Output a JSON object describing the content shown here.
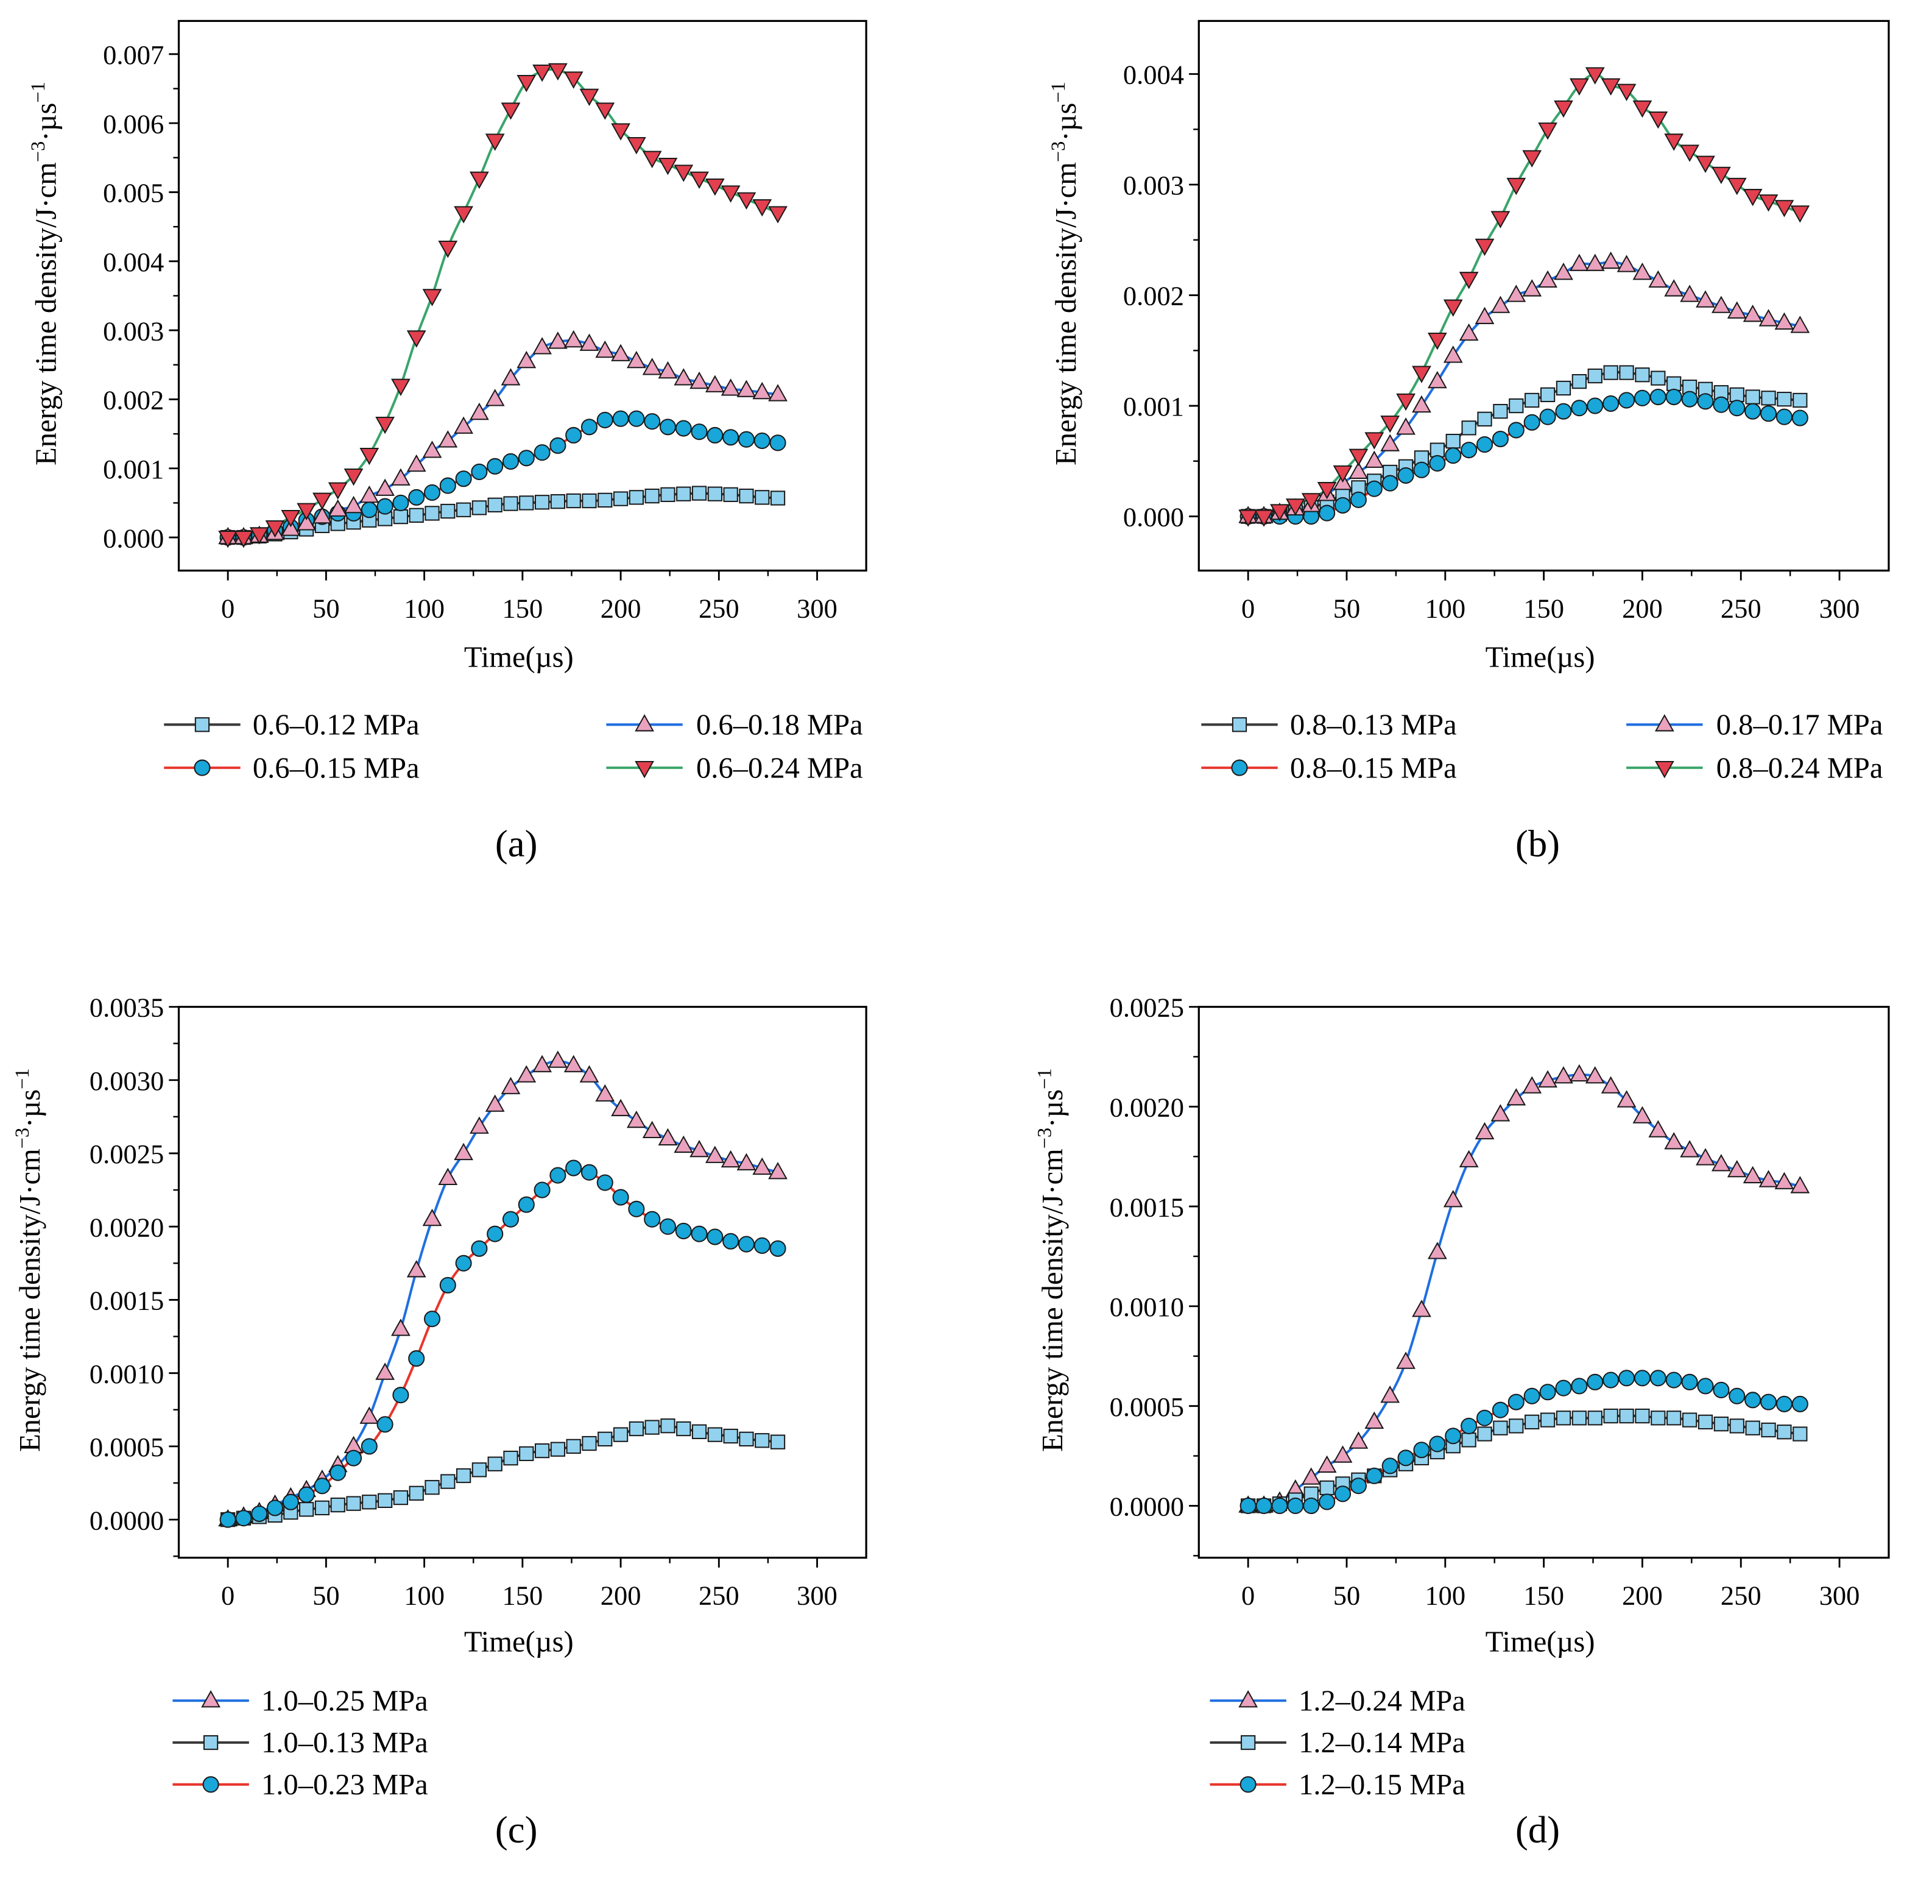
{
  "colors": {
    "green_line": "#3aa56b",
    "blue_line": "#1f6fe0",
    "red_line": "#e8362c",
    "dark_line": "#3a3a3a",
    "down_triangle": "#e2404f",
    "up_triangle": "#eaa2be",
    "circle": "#19a6d9",
    "square": "#92d2ef"
  },
  "chart_data": [
    {
      "type": "line",
      "panel_label": "(a)",
      "xlabel": "Time(µs)",
      "ylabel": {
        "base": "Energy time density/J·cm",
        "sup1": "−3",
        "mid": "·µs",
        "sup2": "−1"
      },
      "xlim": [
        -25,
        325
      ],
      "ylim": [
        -0.00048,
        0.00748
      ],
      "xticks": [
        0,
        50,
        100,
        150,
        200,
        250,
        300
      ],
      "xtick_labels": [
        "0",
        "50",
        "100",
        "150",
        "200",
        "250",
        "300"
      ],
      "yticks": [
        0,
        0.001,
        0.002,
        0.003,
        0.004,
        0.005,
        0.006,
        0.007
      ],
      "ytick_labels": [
        "0.000",
        "0.001",
        "0.002",
        "0.003",
        "0.004",
        "0.005",
        "0.006",
        "0.007"
      ],
      "legend_layout": "two-columns-below",
      "x": [
        0,
        8,
        16,
        24,
        32,
        40,
        48,
        56,
        64,
        72,
        80,
        88,
        96,
        104,
        112,
        120,
        128,
        136,
        144,
        152,
        160,
        168,
        176,
        184,
        192,
        200,
        208,
        216,
        224,
        232,
        240,
        248,
        256,
        264,
        272,
        280
      ],
      "series": [
        {
          "name": "0.6–0.12 MPa",
          "marker": "square",
          "line": "dark_line",
          "values": [
            0,
            0,
            2e-05,
            5e-05,
            8e-05,
            0.00012,
            0.00017,
            0.0002,
            0.00022,
            0.00025,
            0.00027,
            0.0003,
            0.00032,
            0.00035,
            0.00038,
            0.0004,
            0.00043,
            0.00047,
            0.00049,
            0.0005,
            0.00051,
            0.00052,
            0.00053,
            0.00053,
            0.00054,
            0.00056,
            0.00058,
            0.0006,
            0.00062,
            0.00063,
            0.00064,
            0.00063,
            0.00062,
            0.0006,
            0.00058,
            0.00057
          ]
        },
        {
          "name": "0.6–0.15 MPa",
          "marker": "circle",
          "line": "red_line",
          "values": [
            0,
            0,
            3e-05,
            0.0001,
            0.00015,
            0.00025,
            0.0003,
            0.00035,
            0.00035,
            0.0004,
            0.00045,
            0.0005,
            0.00058,
            0.00065,
            0.00075,
            0.00085,
            0.00095,
            0.00103,
            0.0011,
            0.00115,
            0.00123,
            0.00133,
            0.00148,
            0.0016,
            0.0017,
            0.00172,
            0.00172,
            0.00168,
            0.0016,
            0.00158,
            0.00153,
            0.00148,
            0.00145,
            0.00142,
            0.0014,
            0.00137
          ]
        },
        {
          "name": "0.6–0.18 MPa",
          "marker": "up_triangle",
          "line": "blue_line",
          "values": [
            0,
            0,
            2e-05,
            6e-05,
            0.00012,
            0.0002,
            0.0003,
            0.0004,
            0.00045,
            0.0006,
            0.0007,
            0.00085,
            0.00105,
            0.00125,
            0.0014,
            0.0016,
            0.0018,
            0.002,
            0.0023,
            0.00255,
            0.00275,
            0.00283,
            0.00285,
            0.0028,
            0.0027,
            0.00265,
            0.00255,
            0.00245,
            0.0024,
            0.0023,
            0.00225,
            0.0022,
            0.00215,
            0.00213,
            0.0021,
            0.00207
          ]
        },
        {
          "name": "0.6–0.24 MPa",
          "marker": "down_triangle",
          "line": "green_line",
          "values": [
            0,
            0,
            5e-05,
            0.00015,
            0.0003,
            0.0004,
            0.00055,
            0.0007,
            0.0009,
            0.0012,
            0.00165,
            0.0022,
            0.0029,
            0.0035,
            0.0042,
            0.0047,
            0.0052,
            0.00575,
            0.0062,
            0.0066,
            0.00675,
            0.00677,
            0.00665,
            0.0064,
            0.0062,
            0.0059,
            0.0057,
            0.0055,
            0.0054,
            0.0053,
            0.0052,
            0.0051,
            0.005,
            0.0049,
            0.0048,
            0.0047
          ]
        }
      ]
    },
    {
      "type": "line",
      "panel_label": "(b)",
      "xlabel": "Time(µs)",
      "ylabel": {
        "base": "Energy time density/J·cm",
        "sup1": "−3",
        "mid": "·µs",
        "sup2": "−1"
      },
      "xlim": [
        -25,
        325
      ],
      "ylim": [
        -0.00049,
        0.00448
      ],
      "xticks": [
        0,
        50,
        100,
        150,
        200,
        250,
        300
      ],
      "xtick_labels": [
        "0",
        "50",
        "100",
        "150",
        "200",
        "250",
        "300"
      ],
      "yticks": [
        0,
        0.001,
        0.002,
        0.003,
        0.004
      ],
      "ytick_labels": [
        "0.000",
        "0.001",
        "0.002",
        "0.003",
        "0.004"
      ],
      "legend_layout": "two-columns-below",
      "x": [
        0,
        8,
        16,
        24,
        32,
        40,
        48,
        56,
        64,
        72,
        80,
        88,
        96,
        104,
        112,
        120,
        128,
        136,
        144,
        152,
        160,
        168,
        176,
        184,
        192,
        200,
        208,
        216,
        224,
        232,
        240,
        248,
        256,
        264,
        272,
        280
      ],
      "series": [
        {
          "name": "0.8–0.13 MPa",
          "marker": "square",
          "line": "dark_line",
          "values": [
            0,
            0,
            2e-05,
            4e-05,
            8e-05,
            0.00013,
            0.0002,
            0.00026,
            0.00032,
            0.0004,
            0.00045,
            0.00053,
            0.0006,
            0.00068,
            0.0008,
            0.00088,
            0.00095,
            0.001,
            0.00105,
            0.0011,
            0.00116,
            0.00122,
            0.00127,
            0.0013,
            0.0013,
            0.00128,
            0.00125,
            0.0012,
            0.00117,
            0.00115,
            0.00112,
            0.0011,
            0.00108,
            0.00107,
            0.00106,
            0.00105
          ]
        },
        {
          "name": "0.8–0.15 MPa",
          "marker": "circle",
          "line": "red_line",
          "values": [
            0,
            0,
            0,
            0,
            0,
            3e-05,
            0.0001,
            0.00015,
            0.00025,
            0.0003,
            0.00037,
            0.00042,
            0.00048,
            0.00055,
            0.0006,
            0.00065,
            0.0007,
            0.00078,
            0.00085,
            0.0009,
            0.00095,
            0.00098,
            0.001,
            0.00102,
            0.00105,
            0.00107,
            0.00108,
            0.00108,
            0.00106,
            0.00104,
            0.00101,
            0.00098,
            0.00095,
            0.00093,
            0.0009,
            0.00089
          ]
        },
        {
          "name": "0.8–0.17 MPa",
          "marker": "up_triangle",
          "line": "blue_line",
          "values": [
            0,
            0,
            3e-05,
            7e-05,
            0.0001,
            0.0002,
            0.0003,
            0.0004,
            0.0005,
            0.00065,
            0.0008,
            0.001,
            0.00122,
            0.00145,
            0.00165,
            0.0018,
            0.0019,
            0.002,
            0.00205,
            0.00213,
            0.0022,
            0.00228,
            0.00228,
            0.0023,
            0.00227,
            0.0022,
            0.00213,
            0.00205,
            0.002,
            0.00195,
            0.0019,
            0.00185,
            0.00182,
            0.00178,
            0.00175,
            0.00172
          ]
        },
        {
          "name": "0.8–0.24 MPa",
          "marker": "down_triangle",
          "line": "green_line",
          "values": [
            0,
            0,
            5e-05,
            0.0001,
            0.00015,
            0.00025,
            0.0004,
            0.00055,
            0.0007,
            0.00085,
            0.00105,
            0.0013,
            0.0016,
            0.0019,
            0.00215,
            0.00245,
            0.0027,
            0.003,
            0.00325,
            0.0035,
            0.0037,
            0.0039,
            0.004,
            0.0039,
            0.00385,
            0.0037,
            0.0036,
            0.0034,
            0.0033,
            0.0032,
            0.0031,
            0.003,
            0.0029,
            0.00285,
            0.0028,
            0.00275
          ]
        }
      ]
    },
    {
      "type": "line",
      "panel_label": "(c)",
      "xlabel": "Time(µs)",
      "ylabel": {
        "base": "Energy time density/J·cm",
        "sup1": "−3",
        "mid": "·µs",
        "sup2": "−1"
      },
      "xlim": [
        -25,
        325
      ],
      "ylim": [
        -0.00026,
        0.0035
      ],
      "xticks": [
        0,
        50,
        100,
        150,
        200,
        250,
        300
      ],
      "xtick_labels": [
        "0",
        "50",
        "100",
        "150",
        "200",
        "250",
        "300"
      ],
      "yticks": [
        0,
        0.0005,
        0.001,
        0.0015,
        0.002,
        0.0025,
        0.003,
        0.0035
      ],
      "ytick_labels": [
        "0.0000",
        "0.0005",
        "0.0010",
        "0.0015",
        "0.0020",
        "0.0025",
        "0.0030",
        "0.0035"
      ],
      "legend_layout": "one-column-below",
      "x": [
        0,
        8,
        16,
        24,
        32,
        40,
        48,
        56,
        64,
        72,
        80,
        88,
        96,
        104,
        112,
        120,
        128,
        136,
        144,
        152,
        160,
        168,
        176,
        184,
        192,
        200,
        208,
        216,
        224,
        232,
        240,
        248,
        256,
        264,
        272,
        280
      ],
      "series": [
        {
          "name": "1.0–0.25 MPa",
          "marker": "up_triangle",
          "line": "blue_line",
          "values": [
            0,
            2e-05,
            5e-05,
            0.0001,
            0.00015,
            0.0002,
            0.00027,
            0.00037,
            0.0005,
            0.0007,
            0.001,
            0.0013,
            0.0017,
            0.00205,
            0.00233,
            0.0025,
            0.00268,
            0.00283,
            0.00295,
            0.00303,
            0.0031,
            0.00313,
            0.0031,
            0.00303,
            0.0029,
            0.0028,
            0.00272,
            0.00265,
            0.0026,
            0.00255,
            0.00252,
            0.00248,
            0.00245,
            0.00243,
            0.0024,
            0.00237
          ]
        },
        {
          "name": "1.0–0.13 MPa",
          "marker": "square",
          "line": "dark_line",
          "values": [
            0,
            1e-05,
            2e-05,
            3e-05,
            5e-05,
            7e-05,
            8e-05,
            0.0001,
            0.00011,
            0.00012,
            0.00013,
            0.00015,
            0.00018,
            0.00022,
            0.00026,
            0.0003,
            0.00034,
            0.00038,
            0.00042,
            0.00045,
            0.00047,
            0.00048,
            0.0005,
            0.00052,
            0.00055,
            0.00058,
            0.00062,
            0.00063,
            0.00064,
            0.00062,
            0.0006,
            0.00058,
            0.00057,
            0.00055,
            0.00054,
            0.00053
          ]
        },
        {
          "name": "1.0–0.23 MPa",
          "marker": "circle",
          "line": "red_line",
          "values": [
            0,
            1e-05,
            4e-05,
            8e-05,
            0.00012,
            0.00017,
            0.00023,
            0.00032,
            0.00042,
            0.0005,
            0.00065,
            0.00085,
            0.0011,
            0.00137,
            0.0016,
            0.00175,
            0.00185,
            0.00195,
            0.00205,
            0.00215,
            0.00225,
            0.00235,
            0.0024,
            0.00237,
            0.0023,
            0.0022,
            0.00212,
            0.00205,
            0.002,
            0.00197,
            0.00195,
            0.00193,
            0.0019,
            0.00188,
            0.00187,
            0.00185
          ]
        }
      ]
    },
    {
      "type": "line",
      "panel_label": "(d)",
      "xlabel": "Time(µs)",
      "ylabel": {
        "base": "Energy time density/J·cm",
        "sup1": "−3",
        "mid": "·µs",
        "sup2": "−1"
      },
      "xlim": [
        -25,
        325
      ],
      "ylim": [
        -0.00026,
        0.0025
      ],
      "xticks": [
        0,
        50,
        100,
        150,
        200,
        250,
        300
      ],
      "xtick_labels": [
        "0",
        "50",
        "100",
        "150",
        "200",
        "250",
        "300"
      ],
      "yticks": [
        0,
        0.0005,
        0.001,
        0.0015,
        0.002,
        0.0025
      ],
      "ytick_labels": [
        "0.0000",
        "0.0005",
        "0.0010",
        "0.0015",
        "0.0020",
        "0.0025"
      ],
      "legend_layout": "one-column-below",
      "x": [
        0,
        8,
        16,
        24,
        32,
        40,
        48,
        56,
        64,
        72,
        80,
        88,
        96,
        104,
        112,
        120,
        128,
        136,
        144,
        152,
        160,
        168,
        176,
        184,
        192,
        200,
        208,
        216,
        224,
        232,
        240,
        248,
        256,
        264,
        272,
        280
      ],
      "series": [
        {
          "name": "1.2–0.24 MPa",
          "marker": "up_triangle",
          "line": "blue_line",
          "values": [
            0,
            0,
            2e-05,
            8e-05,
            0.00014,
            0.0002,
            0.00025,
            0.00032,
            0.00042,
            0.00055,
            0.00072,
            0.00098,
            0.00127,
            0.00153,
            0.00173,
            0.00187,
            0.00196,
            0.00204,
            0.0021,
            0.00213,
            0.00215,
            0.00216,
            0.00215,
            0.0021,
            0.00203,
            0.00195,
            0.00188,
            0.00182,
            0.00178,
            0.00174,
            0.00171,
            0.00168,
            0.00165,
            0.00163,
            0.00162,
            0.0016
          ]
        },
        {
          "name": "1.2–0.14 MPa",
          "marker": "square",
          "line": "dark_line",
          "values": [
            0,
            0,
            1e-05,
            3e-05,
            6e-05,
            9e-05,
            0.00011,
            0.00013,
            0.00015,
            0.00018,
            0.00021,
            0.00024,
            0.00027,
            0.0003,
            0.00033,
            0.00036,
            0.00039,
            0.0004,
            0.00042,
            0.00043,
            0.00044,
            0.00044,
            0.00044,
            0.00045,
            0.00045,
            0.00045,
            0.00044,
            0.00044,
            0.00043,
            0.00042,
            0.00041,
            0.0004,
            0.00039,
            0.00038,
            0.00037,
            0.00036
          ]
        },
        {
          "name": "1.2–0.15 MPa",
          "marker": "circle",
          "line": "red_line",
          "values": [
            0,
            0,
            0,
            0,
            0,
            2e-05,
            6e-05,
            0.0001,
            0.00015,
            0.0002,
            0.00024,
            0.00028,
            0.00031,
            0.00035,
            0.0004,
            0.00044,
            0.00048,
            0.00052,
            0.00055,
            0.00057,
            0.00059,
            0.0006,
            0.00062,
            0.00063,
            0.00064,
            0.00064,
            0.00064,
            0.00063,
            0.00062,
            0.0006,
            0.00058,
            0.00055,
            0.00053,
            0.00052,
            0.00051,
            0.00051
          ]
        }
      ]
    }
  ]
}
